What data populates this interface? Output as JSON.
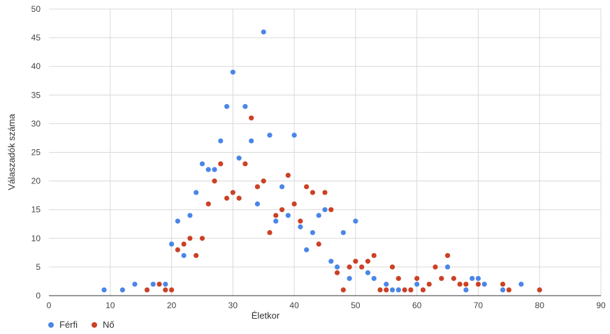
{
  "chart_data": {
    "type": "scatter",
    "xlabel": "Életkor",
    "ylabel": "Válaszadók száma",
    "xlim": [
      0,
      90
    ],
    "ylim": [
      0,
      50
    ],
    "x_ticks": [
      0,
      10,
      20,
      30,
      40,
      50,
      60,
      70,
      80,
      90
    ],
    "y_ticks": [
      0,
      5,
      10,
      15,
      20,
      25,
      30,
      35,
      40,
      45,
      50
    ],
    "grid": true,
    "legend_position": "bottom-left",
    "series": [
      {
        "name": "Férfi",
        "color": "#4a86e8",
        "points": [
          [
            9,
            1
          ],
          [
            12,
            1
          ],
          [
            14,
            2
          ],
          [
            17,
            2
          ],
          [
            19,
            2
          ],
          [
            20,
            9
          ],
          [
            21,
            13
          ],
          [
            22,
            7
          ],
          [
            23,
            14
          ],
          [
            24,
            18
          ],
          [
            25,
            23
          ],
          [
            26,
            22
          ],
          [
            27,
            22
          ],
          [
            28,
            27
          ],
          [
            29,
            33
          ],
          [
            30,
            39
          ],
          [
            31,
            24
          ],
          [
            32,
            33
          ],
          [
            33,
            27
          ],
          [
            34,
            16
          ],
          [
            35,
            46
          ],
          [
            36,
            28
          ],
          [
            37,
            13
          ],
          [
            38,
            19
          ],
          [
            39,
            14
          ],
          [
            40,
            28
          ],
          [
            41,
            12
          ],
          [
            42,
            8
          ],
          [
            43,
            11
          ],
          [
            44,
            14
          ],
          [
            45,
            15
          ],
          [
            46,
            6
          ],
          [
            47,
            5
          ],
          [
            48,
            11
          ],
          [
            49,
            3
          ],
          [
            50,
            13
          ],
          [
            52,
            4
          ],
          [
            53,
            3
          ],
          [
            55,
            2
          ],
          [
            56,
            1
          ],
          [
            57,
            1
          ],
          [
            60,
            2
          ],
          [
            65,
            5
          ],
          [
            68,
            1
          ],
          [
            69,
            3
          ],
          [
            70,
            3
          ],
          [
            71,
            2
          ],
          [
            74,
            1
          ],
          [
            77,
            2
          ]
        ]
      },
      {
        "name": "Nő",
        "color": "#cc4125",
        "points": [
          [
            16,
            1
          ],
          [
            18,
            2
          ],
          [
            19,
            1
          ],
          [
            20,
            1
          ],
          [
            21,
            8
          ],
          [
            22,
            9
          ],
          [
            23,
            10
          ],
          [
            24,
            7
          ],
          [
            25,
            10
          ],
          [
            26,
            16
          ],
          [
            27,
            20
          ],
          [
            28,
            23
          ],
          [
            29,
            17
          ],
          [
            30,
            18
          ],
          [
            31,
            17
          ],
          [
            32,
            23
          ],
          [
            33,
            31
          ],
          [
            34,
            19
          ],
          [
            35,
            20
          ],
          [
            36,
            11
          ],
          [
            37,
            14
          ],
          [
            38,
            15
          ],
          [
            39,
            21
          ],
          [
            40,
            16
          ],
          [
            41,
            13
          ],
          [
            42,
            19
          ],
          [
            43,
            18
          ],
          [
            44,
            9
          ],
          [
            45,
            18
          ],
          [
            46,
            15
          ],
          [
            47,
            4
          ],
          [
            48,
            1
          ],
          [
            49,
            5
          ],
          [
            50,
            6
          ],
          [
            51,
            5
          ],
          [
            52,
            6
          ],
          [
            53,
            7
          ],
          [
            54,
            1
          ],
          [
            55,
            1
          ],
          [
            56,
            5
          ],
          [
            57,
            3
          ],
          [
            58,
            1
          ],
          [
            59,
            1
          ],
          [
            60,
            3
          ],
          [
            61,
            1
          ],
          [
            62,
            2
          ],
          [
            63,
            5
          ],
          [
            64,
            3
          ],
          [
            65,
            7
          ],
          [
            66,
            3
          ],
          [
            67,
            2
          ],
          [
            68,
            2
          ],
          [
            70,
            2
          ],
          [
            74,
            2
          ],
          [
            75,
            1
          ],
          [
            80,
            1
          ]
        ]
      }
    ]
  }
}
